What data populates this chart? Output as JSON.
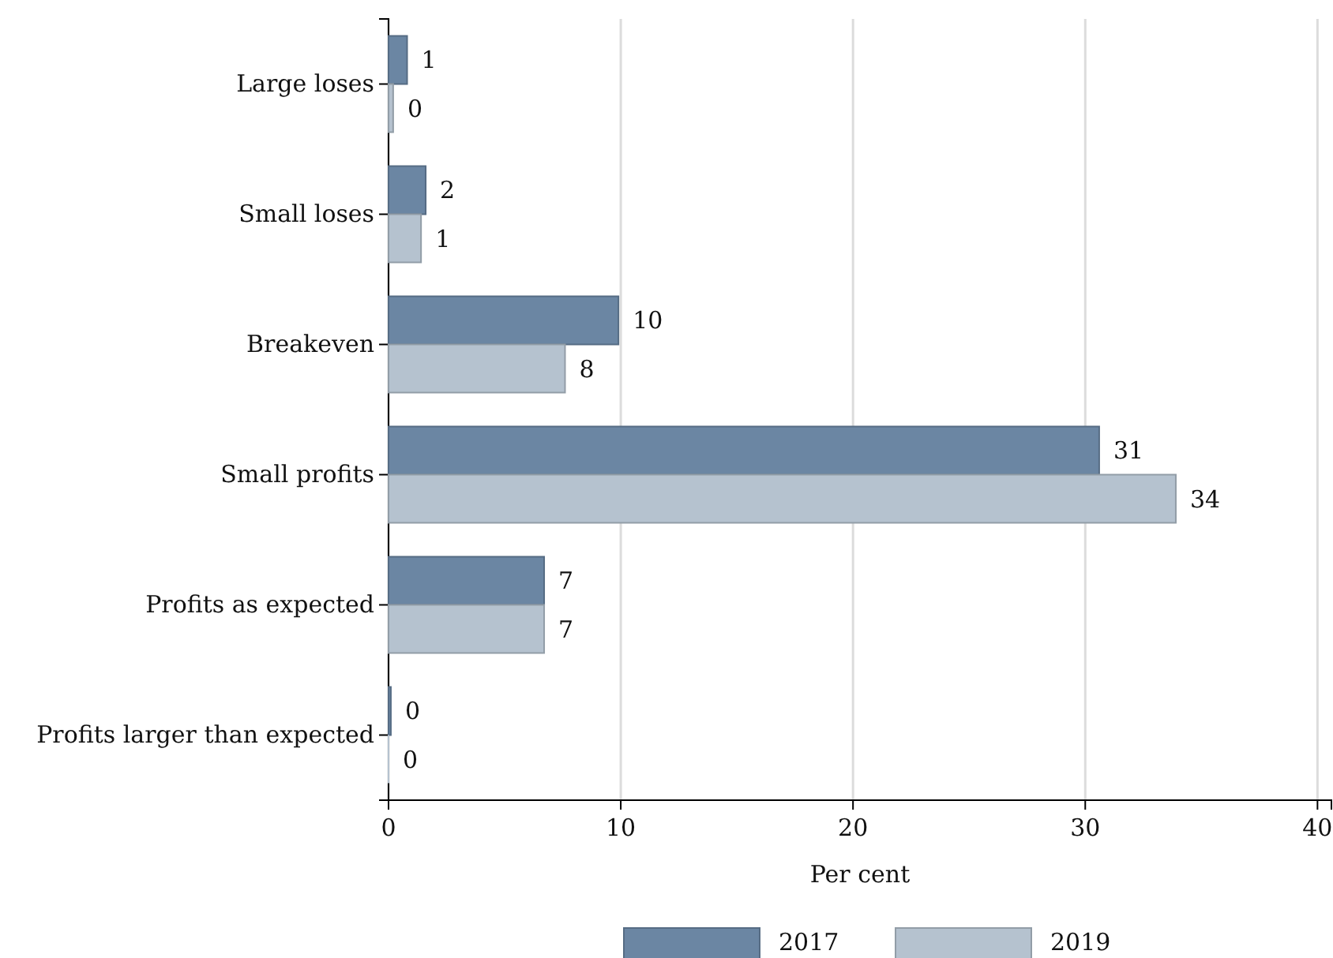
{
  "chart_data": {
    "type": "bar",
    "orientation": "horizontal",
    "xlabel": "Per cent",
    "categories": [
      "Large loses",
      "Small loses",
      "Breakeven",
      "Small profits",
      "Profits as expected",
      "Profits larger than expected"
    ],
    "series": [
      {
        "name": "2017",
        "color": "#6b86a3",
        "values": [
          0.8,
          1.6,
          9.9,
          30.6,
          6.7,
          0.1
        ],
        "value_labels": [
          "1",
          "2",
          "10",
          "31",
          "7",
          "0"
        ]
      },
      {
        "name": "2019",
        "color": "#b5c2cf",
        "values": [
          0.2,
          1.4,
          7.6,
          33.9,
          6.7,
          0
        ],
        "value_labels": [
          "0",
          "1",
          "8",
          "34",
          "7",
          "0"
        ]
      }
    ],
    "xlim": [
      0,
      40.6
    ],
    "xticks": [
      0,
      10,
      20,
      30,
      40
    ],
    "grid": "x",
    "legend": "bottom"
  }
}
